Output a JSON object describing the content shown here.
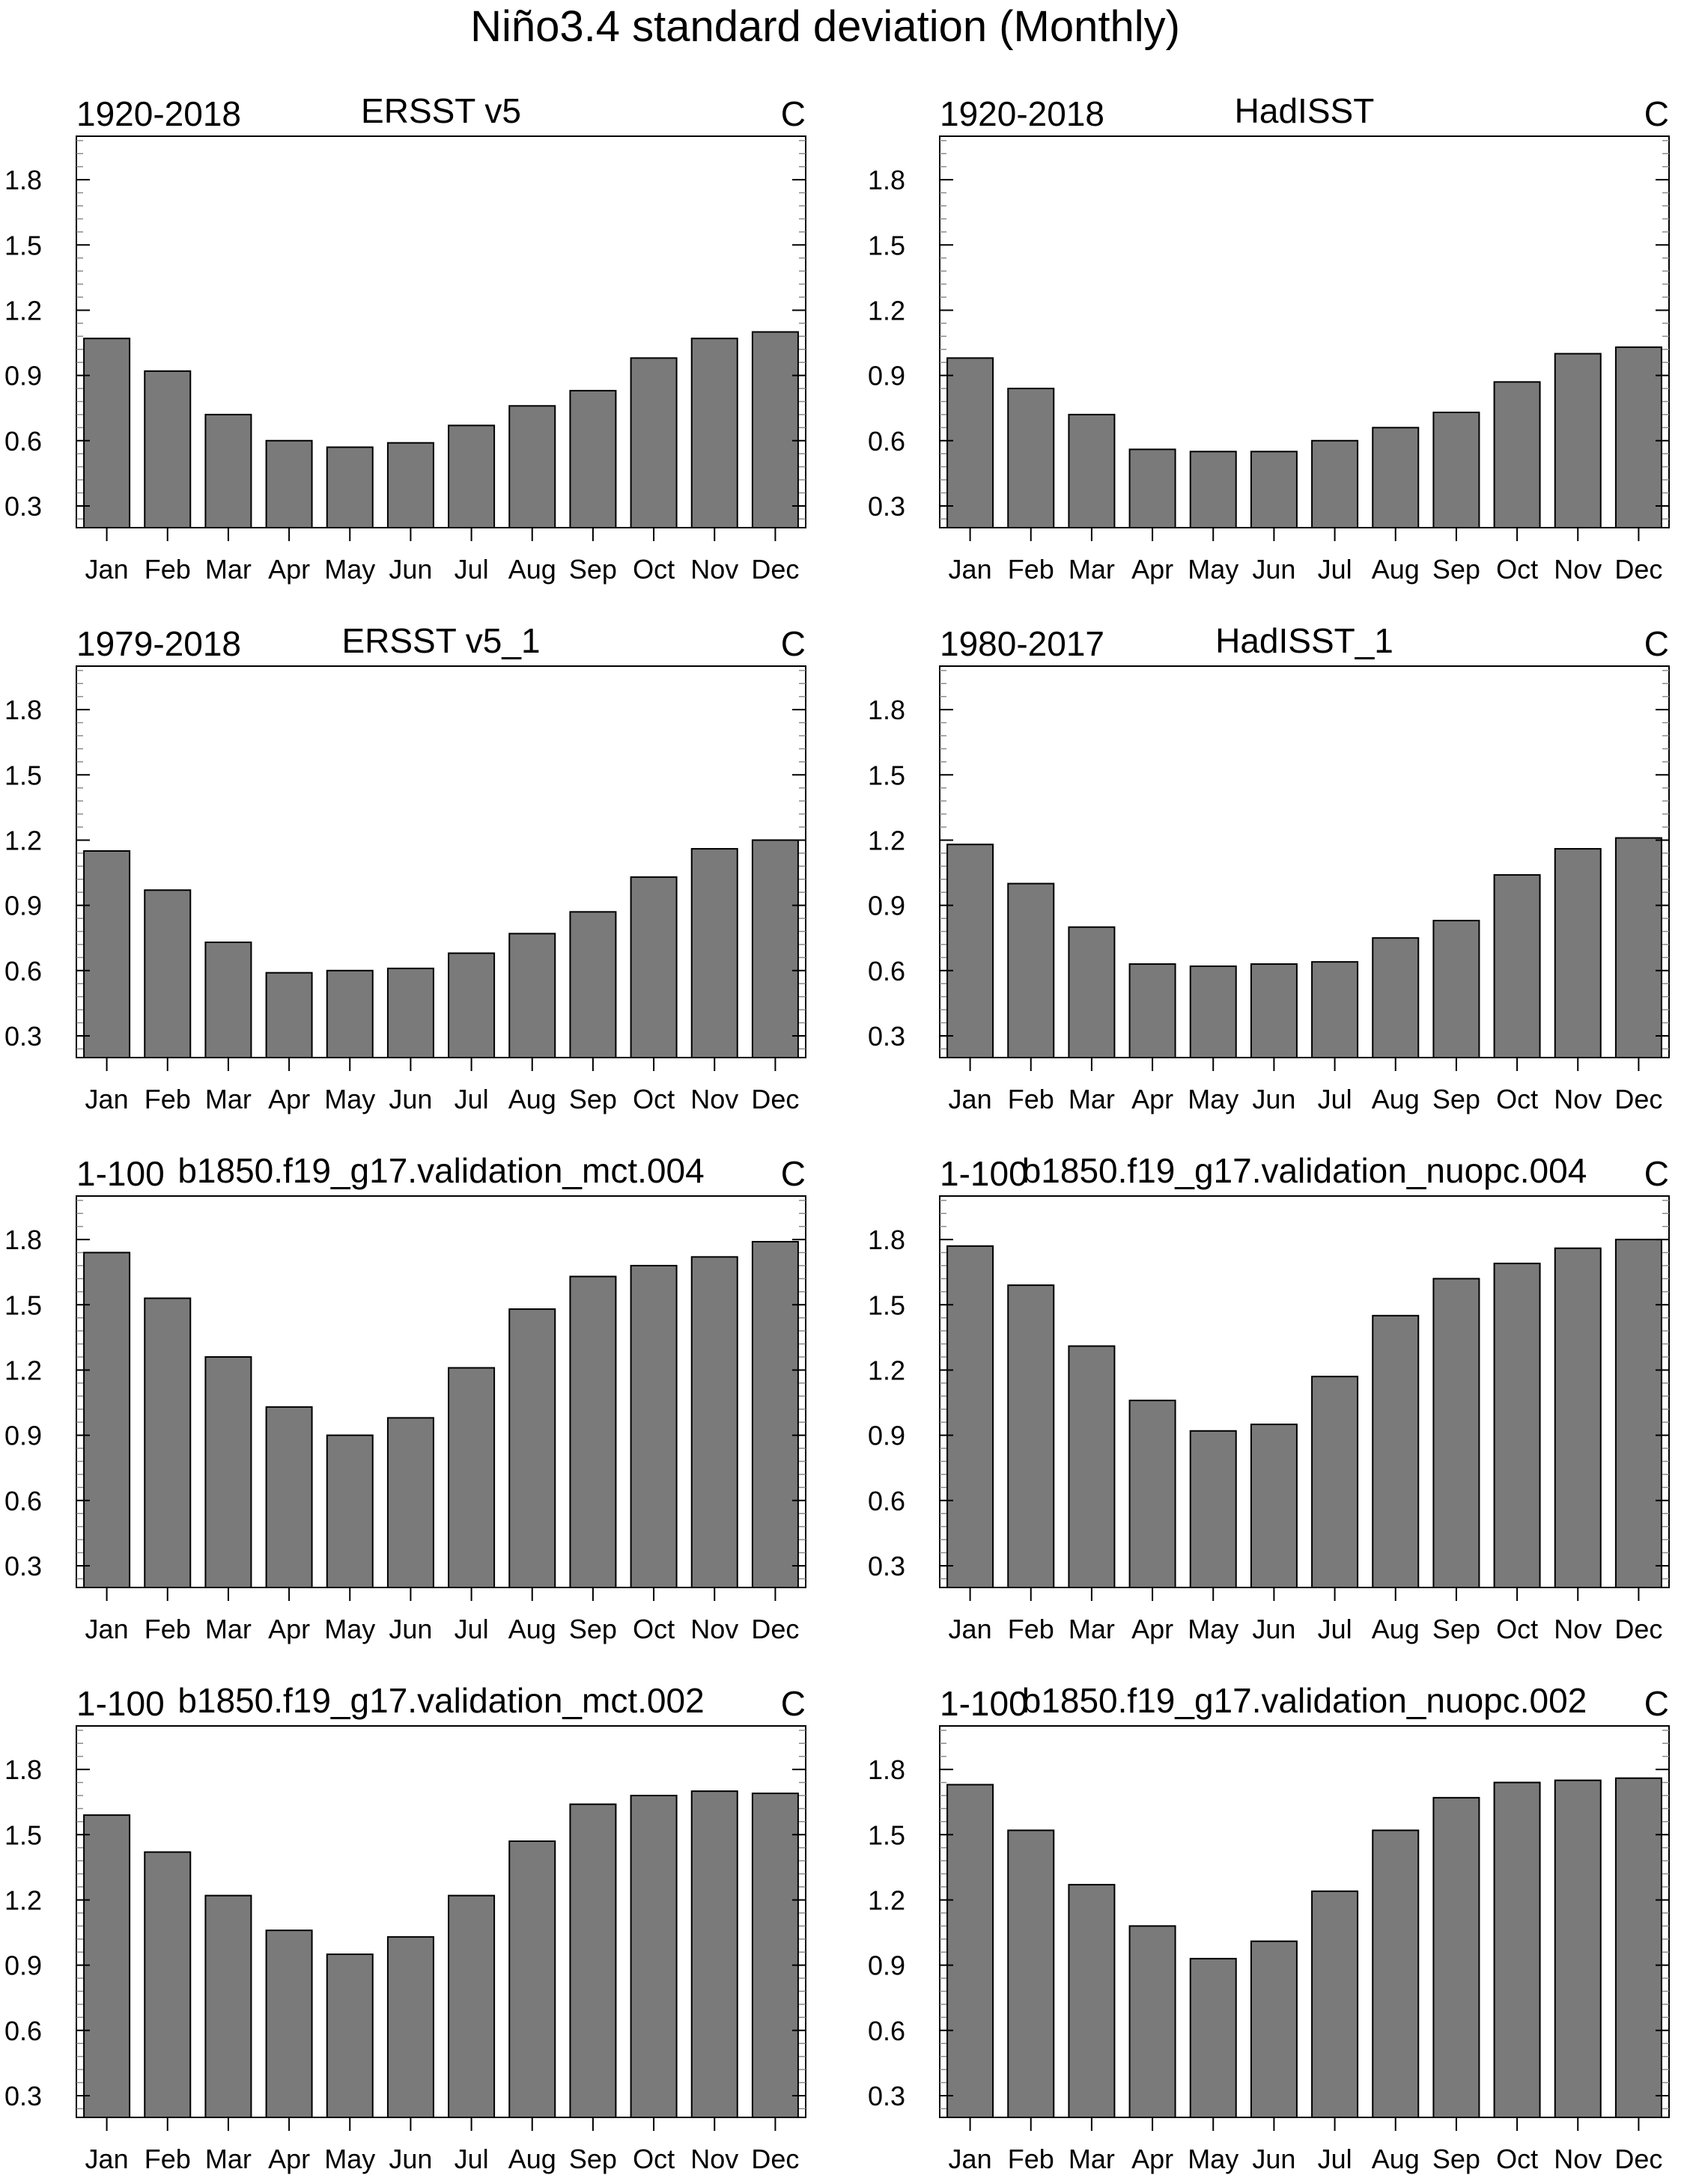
{
  "figure_title": "Niño3.4 standard deviation (Monthly)",
  "chart_data": [
    {
      "type": "bar",
      "period": "1920-2018",
      "title": "ERSST v5",
      "units": "C",
      "categories": [
        "Jan",
        "Feb",
        "Mar",
        "Apr",
        "May",
        "Jun",
        "Jul",
        "Aug",
        "Sep",
        "Oct",
        "Nov",
        "Dec"
      ],
      "values": [
        1.07,
        0.92,
        0.72,
        0.6,
        0.57,
        0.59,
        0.67,
        0.76,
        0.83,
        0.98,
        1.07,
        1.1
      ],
      "ylim": [
        0.2,
        2.0
      ],
      "yticks": [
        "0.3",
        "0.6",
        "0.9",
        "1.2",
        "1.5",
        "1.8"
      ]
    },
    {
      "type": "bar",
      "period": "1920-2018",
      "title": "HadISST",
      "units": "C",
      "categories": [
        "Jan",
        "Feb",
        "Mar",
        "Apr",
        "May",
        "Jun",
        "Jul",
        "Aug",
        "Sep",
        "Oct",
        "Nov",
        "Dec"
      ],
      "values": [
        0.98,
        0.84,
        0.72,
        0.56,
        0.55,
        0.55,
        0.6,
        0.66,
        0.73,
        0.87,
        1.0,
        1.03
      ],
      "ylim": [
        0.2,
        2.0
      ],
      "yticks": [
        "0.3",
        "0.6",
        "0.9",
        "1.2",
        "1.5",
        "1.8"
      ]
    },
    {
      "type": "bar",
      "period": "1979-2018",
      "title": "ERSST v5_1",
      "units": "C",
      "categories": [
        "Jan",
        "Feb",
        "Mar",
        "Apr",
        "May",
        "Jun",
        "Jul",
        "Aug",
        "Sep",
        "Oct",
        "Nov",
        "Dec"
      ],
      "values": [
        1.15,
        0.97,
        0.73,
        0.59,
        0.6,
        0.61,
        0.68,
        0.77,
        0.87,
        1.03,
        1.16,
        1.2
      ],
      "ylim": [
        0.2,
        2.0
      ],
      "yticks": [
        "0.3",
        "0.6",
        "0.9",
        "1.2",
        "1.5",
        "1.8"
      ]
    },
    {
      "type": "bar",
      "period": "1980-2017",
      "title": "HadISST_1",
      "units": "C",
      "categories": [
        "Jan",
        "Feb",
        "Mar",
        "Apr",
        "May",
        "Jun",
        "Jul",
        "Aug",
        "Sep",
        "Oct",
        "Nov",
        "Dec"
      ],
      "values": [
        1.18,
        1.0,
        0.8,
        0.63,
        0.62,
        0.63,
        0.64,
        0.75,
        0.83,
        1.04,
        1.16,
        1.21
      ],
      "ylim": [
        0.2,
        2.0
      ],
      "yticks": [
        "0.3",
        "0.6",
        "0.9",
        "1.2",
        "1.5",
        "1.8"
      ]
    },
    {
      "type": "bar",
      "period": "1-100",
      "title": "b1850.f19_g17.validation_mct.004",
      "units": "C",
      "categories": [
        "Jan",
        "Feb",
        "Mar",
        "Apr",
        "May",
        "Jun",
        "Jul",
        "Aug",
        "Sep",
        "Oct",
        "Nov",
        "Dec"
      ],
      "values": [
        1.74,
        1.53,
        1.26,
        1.03,
        0.9,
        0.98,
        1.21,
        1.48,
        1.63,
        1.68,
        1.72,
        1.79
      ],
      "ylim": [
        0.2,
        2.0
      ],
      "yticks": [
        "0.3",
        "0.6",
        "0.9",
        "1.2",
        "1.5",
        "1.8"
      ]
    },
    {
      "type": "bar",
      "period": "1-100",
      "title": "b1850.f19_g17.validation_nuopc.004",
      "units": "C",
      "categories": [
        "Jan",
        "Feb",
        "Mar",
        "Apr",
        "May",
        "Jun",
        "Jul",
        "Aug",
        "Sep",
        "Oct",
        "Nov",
        "Dec"
      ],
      "values": [
        1.77,
        1.59,
        1.31,
        1.06,
        0.92,
        0.95,
        1.17,
        1.45,
        1.62,
        1.69,
        1.76,
        1.8
      ],
      "ylim": [
        0.2,
        2.0
      ],
      "yticks": [
        "0.3",
        "0.6",
        "0.9",
        "1.2",
        "1.5",
        "1.8"
      ]
    },
    {
      "type": "bar",
      "period": "1-100",
      "title": "b1850.f19_g17.validation_mct.002",
      "units": "C",
      "categories": [
        "Jan",
        "Feb",
        "Mar",
        "Apr",
        "May",
        "Jun",
        "Jul",
        "Aug",
        "Sep",
        "Oct",
        "Nov",
        "Dec"
      ],
      "values": [
        1.59,
        1.42,
        1.22,
        1.06,
        0.95,
        1.03,
        1.22,
        1.47,
        1.64,
        1.68,
        1.7,
        1.69
      ],
      "ylim": [
        0.2,
        2.0
      ],
      "yticks": [
        "0.3",
        "0.6",
        "0.9",
        "1.2",
        "1.5",
        "1.8"
      ]
    },
    {
      "type": "bar",
      "period": "1-100",
      "title": "b1850.f19_g17.validation_nuopc.002",
      "units": "C",
      "categories": [
        "Jan",
        "Feb",
        "Mar",
        "Apr",
        "May",
        "Jun",
        "Jul",
        "Aug",
        "Sep",
        "Oct",
        "Nov",
        "Dec"
      ],
      "values": [
        1.73,
        1.52,
        1.27,
        1.08,
        0.93,
        1.01,
        1.24,
        1.52,
        1.67,
        1.74,
        1.75,
        1.76
      ],
      "ylim": [
        0.2,
        2.0
      ],
      "yticks": [
        "0.3",
        "0.6",
        "0.9",
        "1.2",
        "1.5",
        "1.8"
      ]
    }
  ],
  "colors": {
    "bar_fill": "#7a7a7a",
    "bar_stroke": "#000000",
    "axis": "#000000",
    "minor_tick": "#8c8c8c",
    "text": "#000000"
  }
}
